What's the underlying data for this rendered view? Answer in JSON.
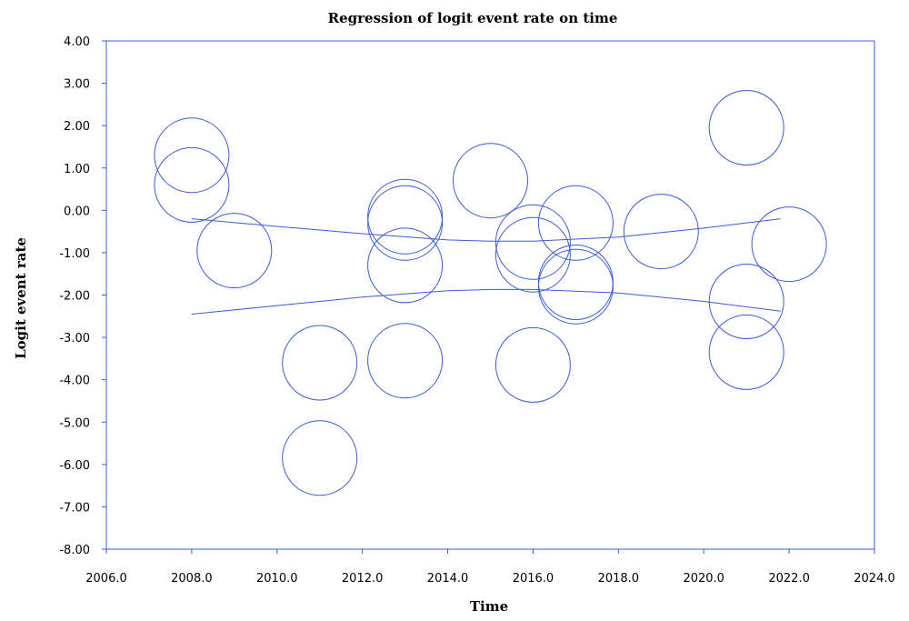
{
  "chart_data": {
    "type": "scatter",
    "title": "Regression of logit event rate on time",
    "xlabel": "Time",
    "ylabel": "Logit event rate",
    "xlim": [
      2006,
      2024
    ],
    "ylim": [
      -8,
      4
    ],
    "x_ticks": [
      "2006.0",
      "2008.0",
      "2010.0",
      "2012.0",
      "2014.0",
      "2016.0",
      "2018.0",
      "2020.0",
      "2022.0",
      "2024.0"
    ],
    "y_ticks": [
      "4.00",
      "3.00",
      "2.00",
      "1.00",
      "0.00",
      "-1.00",
      "-2.00",
      "-3.00",
      "-4.00",
      "-5.00",
      "-6.00",
      "-7.00",
      "-8.00"
    ],
    "grid": false,
    "colors": {
      "series": "#3b5bdb",
      "axis": "#3b5bdb"
    },
    "points": [
      {
        "x": 2008,
        "y": 1.3
      },
      {
        "x": 2008,
        "y": 0.6
      },
      {
        "x": 2009,
        "y": -0.95
      },
      {
        "x": 2011,
        "y": -3.6
      },
      {
        "x": 2011,
        "y": -5.85
      },
      {
        "x": 2013,
        "y": -0.15
      },
      {
        "x": 2013,
        "y": -0.3
      },
      {
        "x": 2013,
        "y": -1.3
      },
      {
        "x": 2013,
        "y": -3.55
      },
      {
        "x": 2015,
        "y": 0.7
      },
      {
        "x": 2016,
        "y": -0.75
      },
      {
        "x": 2016,
        "y": -1.05
      },
      {
        "x": 2016,
        "y": -3.65
      },
      {
        "x": 2017,
        "y": -0.3
      },
      {
        "x": 2017,
        "y": -1.7
      },
      {
        "x": 2017,
        "y": -1.8
      },
      {
        "x": 2019,
        "y": -0.5
      },
      {
        "x": 2021,
        "y": 1.95
      },
      {
        "x": 2021,
        "y": -2.15
      },
      {
        "x": 2021,
        "y": -3.35
      },
      {
        "x": 2022,
        "y": -0.8
      }
    ],
    "confidence_band": {
      "upper": [
        {
          "x": 2008.0,
          "y": -0.2
        },
        {
          "x": 2010.0,
          "y": -0.38
        },
        {
          "x": 2012.0,
          "y": -0.55
        },
        {
          "x": 2014.0,
          "y": -0.7
        },
        {
          "x": 2015.0,
          "y": -0.73
        },
        {
          "x": 2016.0,
          "y": -0.73
        },
        {
          "x": 2018.0,
          "y": -0.63
        },
        {
          "x": 2020.0,
          "y": -0.42
        },
        {
          "x": 2021.8,
          "y": -0.2
        }
      ],
      "lower": [
        {
          "x": 2008.0,
          "y": -2.45
        },
        {
          "x": 2010.0,
          "y": -2.25
        },
        {
          "x": 2012.0,
          "y": -2.05
        },
        {
          "x": 2014.0,
          "y": -1.9
        },
        {
          "x": 2015.0,
          "y": -1.87
        },
        {
          "x": 2016.0,
          "y": -1.87
        },
        {
          "x": 2018.0,
          "y": -1.95
        },
        {
          "x": 2020.0,
          "y": -2.15
        },
        {
          "x": 2021.8,
          "y": -2.38
        }
      ]
    }
  }
}
